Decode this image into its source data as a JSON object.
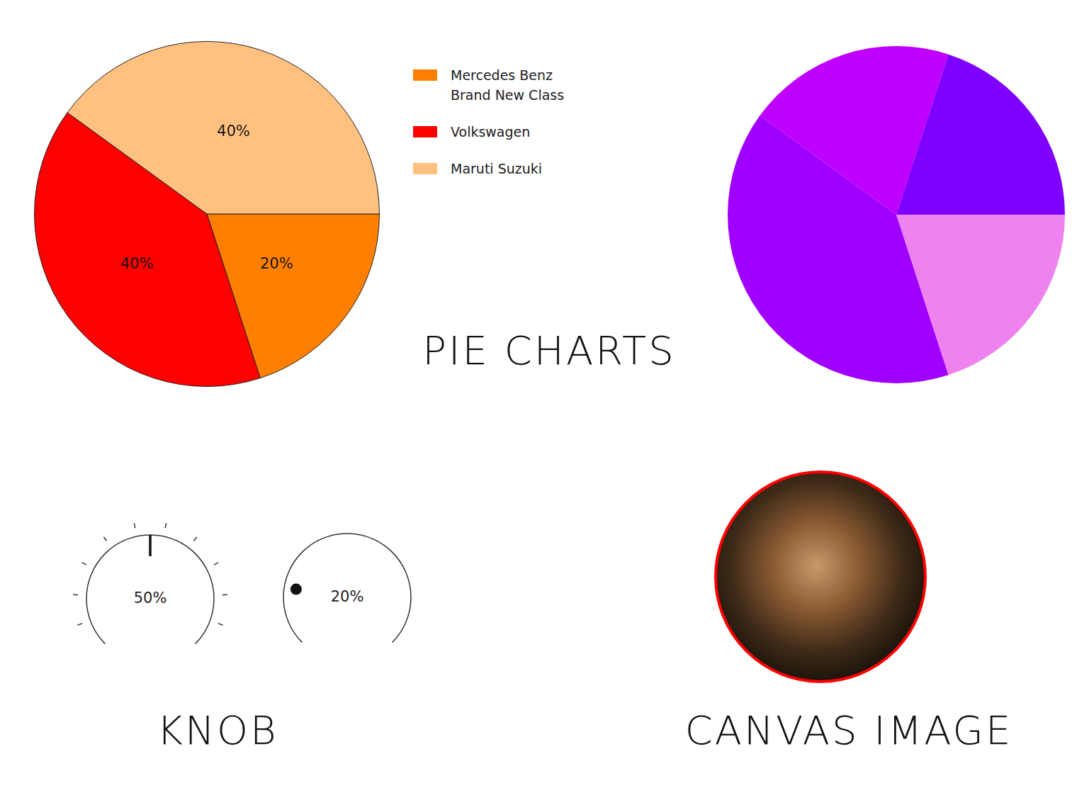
{
  "chart_data": [
    {
      "type": "pie",
      "categories": [
        "Mercedes Benz Brand New Class",
        "Volkswagen",
        "Maruti Suzuki"
      ],
      "values": [
        20,
        40,
        40
      ],
      "value_labels": [
        "20%",
        "40%",
        "40%"
      ],
      "colors": [
        "#ff8000",
        "#ff0000",
        "#ffc080"
      ],
      "data_labels": true,
      "legend": "right"
    },
    {
      "type": "pie",
      "values": [
        20,
        40,
        20,
        20
      ],
      "colors": [
        "#ee82ee",
        "#a000ff",
        "#c000ff",
        "#8000ff"
      ]
    }
  ],
  "captions": {
    "charts": "PIE CHARTS",
    "knobs": "KNOB",
    "image": "CANVAS IMAGE"
  },
  "knobs": [
    {
      "value": 50,
      "value_label": "50%",
      "range": [
        0,
        100
      ],
      "marker": "line",
      "tick_marks": true
    },
    {
      "value": 20,
      "value_label": "20%",
      "range": [
        0,
        100
      ],
      "marker": "dot",
      "tick_marks": false
    }
  ]
}
